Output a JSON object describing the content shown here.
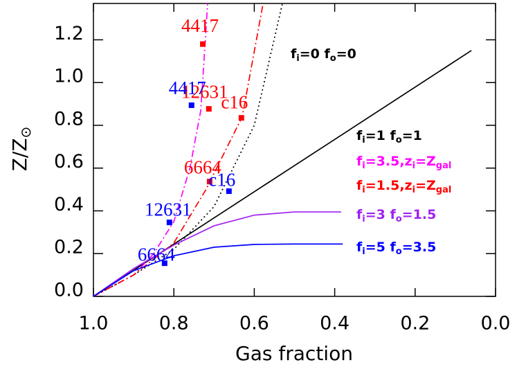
{
  "chart_data": {
    "type": "line",
    "x_label": "Gas fraction",
    "y_label": [
      "Z/Z",
      "⊙"
    ],
    "xlim": [
      1.0,
      0.0
    ],
    "ylim": [
      0,
      1.37
    ],
    "xticks": [
      {
        "value": 1.0,
        "label": "1.0"
      },
      0.8,
      0.6,
      0.4,
      0.2,
      {
        "value": 0,
        "label": "0.0"
      }
    ],
    "yticks": [
      {
        "value": 0,
        "label": "0.0"
      },
      0.2,
      0.4,
      0.6,
      0.8,
      {
        "value": 1.0,
        "label": "1.0"
      },
      1.2
    ],
    "series": [
      {
        "name": [
          "f",
          "i",
          "=0  f",
          "o",
          "=0"
        ],
        "color": "#000000",
        "style": "dotted",
        "x": [
          1.0,
          0.9,
          0.8,
          0.7,
          0.6,
          0.53
        ],
        "values": [
          0,
          0.1,
          0.22,
          0.42,
          0.8,
          1.37
        ]
      },
      {
        "name": [
          "f",
          "i",
          "=1  f",
          "o",
          "=1"
        ],
        "color": "#000000",
        "style": "solid",
        "x": [
          1.0,
          0.06
        ],
        "values": [
          0,
          1.15
        ]
      },
      {
        "name": [
          "f",
          "i",
          "=3.5,z",
          "i",
          "=Z",
          "gal"
        ],
        "color": "#ff00ff",
        "style": "dashdot",
        "x": [
          1.0,
          0.9,
          0.85,
          0.8,
          0.76,
          0.733,
          0.716
        ],
        "values": [
          0,
          0.1,
          0.2,
          0.35,
          0.6,
          0.87,
          1.37
        ]
      },
      {
        "name": [
          "f",
          "i",
          "=1.5,z",
          "i",
          "=Z",
          "gal"
        ],
        "color": "#ff0000",
        "style": "dashdot",
        "x": [
          1.0,
          0.9,
          0.8,
          0.72,
          0.63,
          0.578
        ],
        "values": [
          0,
          0.1,
          0.25,
          0.5,
          0.84,
          1.37
        ]
      },
      {
        "name": [
          "f",
          "i",
          "=3  f",
          "o",
          "=1.5"
        ],
        "color": "#a020f0",
        "style": "solid",
        "x": [
          1.0,
          0.9,
          0.8,
          0.7,
          0.6,
          0.5,
          0.384
        ],
        "values": [
          0,
          0.13,
          0.24,
          0.33,
          0.38,
          0.395,
          0.395
        ]
      },
      {
        "name": [
          "f",
          "i",
          "=5  f",
          "o",
          "=3.5"
        ],
        "color": "#0000ff",
        "style": "solid",
        "x": [
          1.0,
          0.9,
          0.8,
          0.7,
          0.6,
          0.5,
          0.38
        ],
        "values": [
          0,
          0.12,
          0.19,
          0.23,
          0.243,
          0.245,
          0.245
        ]
      }
    ],
    "markers": [
      {
        "color": "#ff0000",
        "labels": [
          "4417",
          "12631",
          "c16",
          "6664"
        ],
        "x": [
          0.728,
          0.713,
          0.632,
          0.711
        ],
        "values": [
          1.18,
          0.877,
          0.835,
          0.537
        ]
      },
      {
        "color": "#0000ff",
        "labels": [
          "4417",
          "12631",
          "c16",
          "6664"
        ],
        "x": [
          0.756,
          0.811,
          0.663,
          0.823
        ],
        "values": [
          0.894,
          0.346,
          0.492,
          0.155
        ]
      }
    ]
  }
}
